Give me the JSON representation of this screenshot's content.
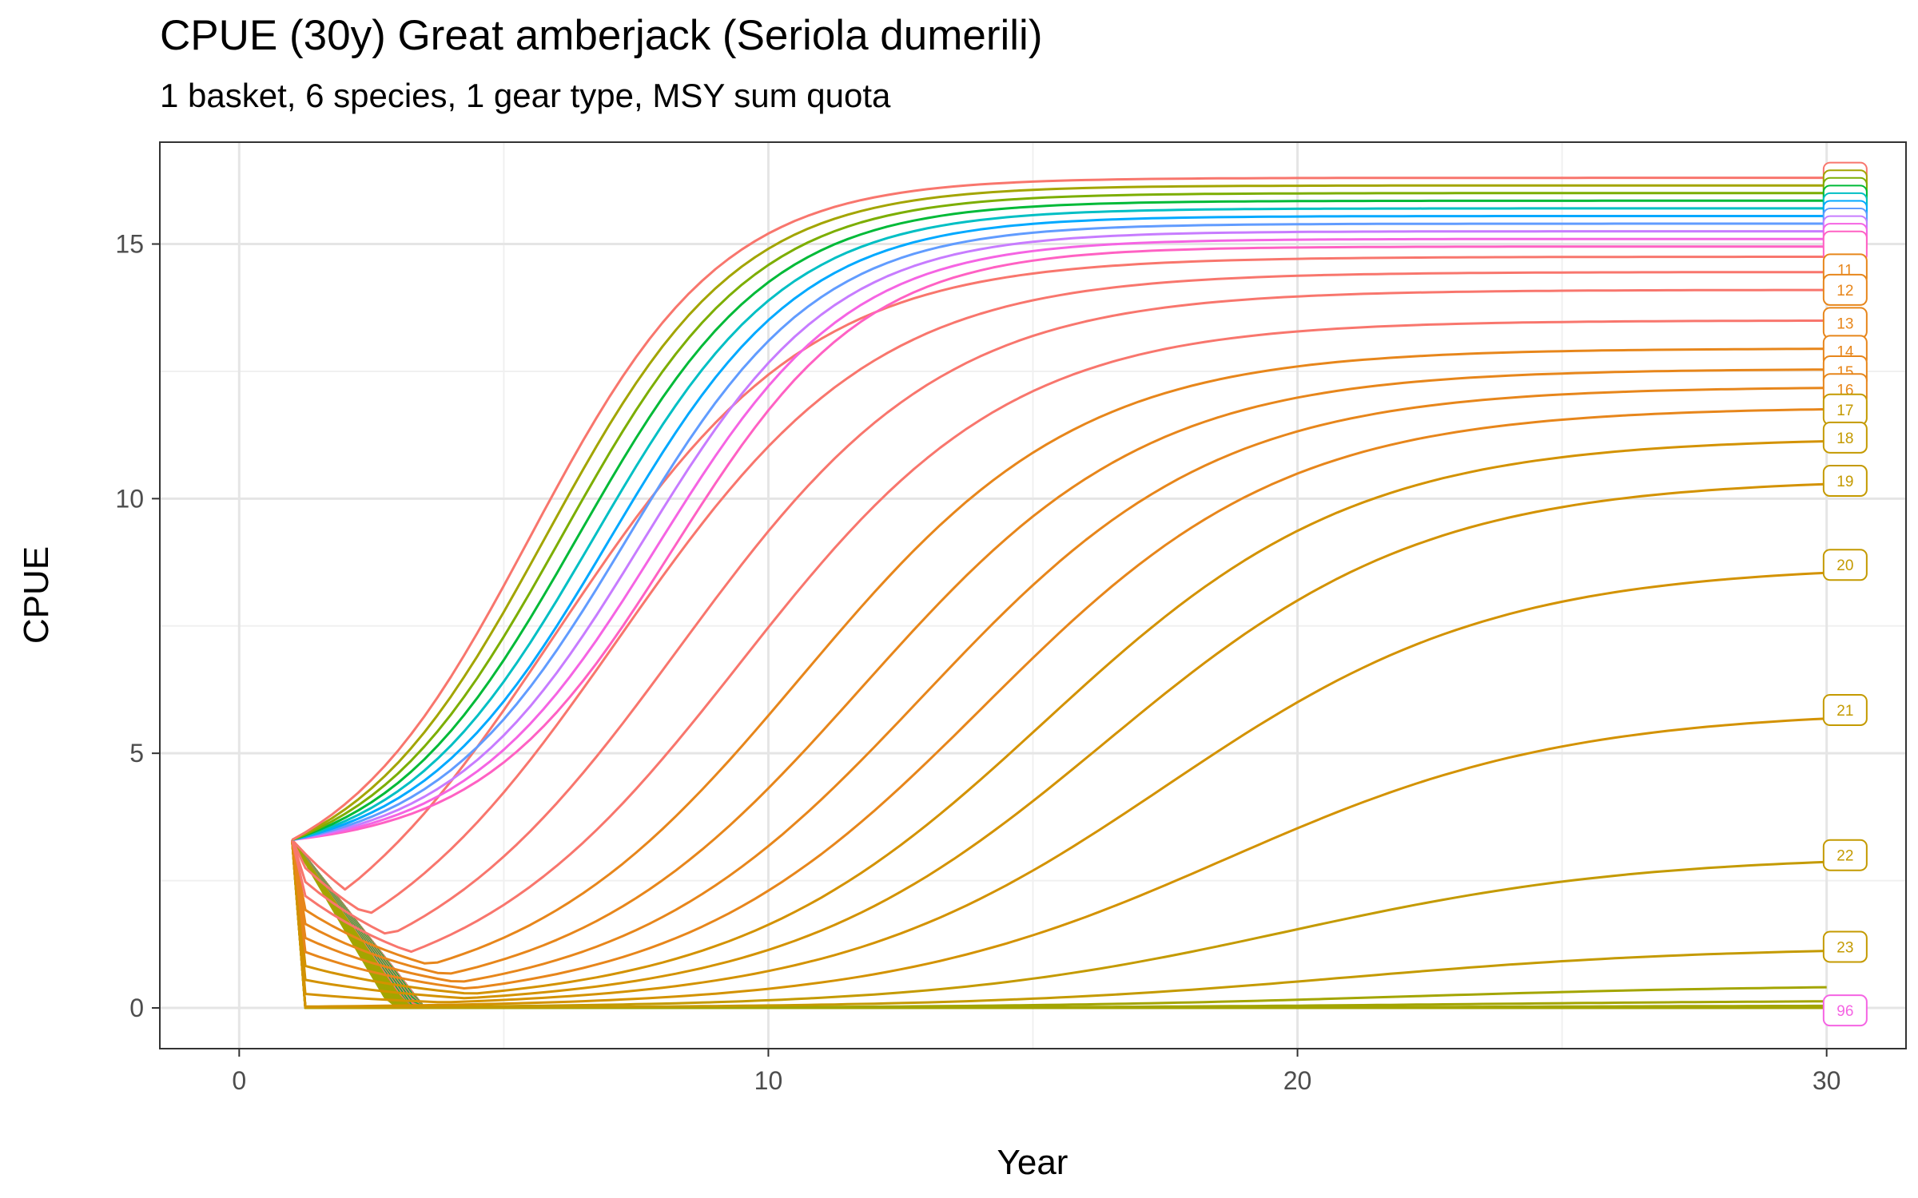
{
  "chart_data": {
    "type": "line",
    "title": "CPUE (30y) Great amberjack (Seriola dumerili)",
    "subtitle": "1 basket, 6 species, 1 gear type, MSY sum quota",
    "xlabel": "Year",
    "ylabel": "CPUE",
    "xlim": [
      -1.5,
      31.5
    ],
    "ylim": [
      -0.8,
      17.0
    ],
    "x_ticks": [
      0,
      10,
      20,
      30
    ],
    "y_ticks": [
      0,
      5,
      10,
      15
    ],
    "grid": true,
    "legend": "none (end-of-line labels)",
    "start": {
      "x": 1,
      "y": 3.3
    },
    "x_end": 30,
    "series_count": 96,
    "end_values": [
      16.3,
      16.15,
      16.0,
      15.85,
      15.7,
      15.55,
      15.4,
      15.25,
      15.1,
      14.95,
      14.75,
      14.45,
      14.1,
      13.5,
      12.95,
      12.55,
      12.2,
      11.8,
      11.2,
      10.4,
      8.7,
      5.85,
      3.0,
      1.2,
      0.45,
      0.15,
      0.05,
      0.02,
      0.01
    ],
    "end_labels": [
      {
        "text": "11",
        "y": 14.5
      },
      {
        "text": "12",
        "y": 14.1
      },
      {
        "text": "13",
        "y": 13.45
      },
      {
        "text": "14",
        "y": 12.9
      },
      {
        "text": "15",
        "y": 12.5
      },
      {
        "text": "16",
        "y": 12.15
      },
      {
        "text": "17",
        "y": 11.75
      },
      {
        "text": "18",
        "y": 11.2
      },
      {
        "text": "19",
        "y": 10.35
      },
      {
        "text": "20",
        "y": 8.7
      },
      {
        "text": "21",
        "y": 5.85
      },
      {
        "text": "22",
        "y": 3.0
      },
      {
        "text": "23",
        "y": 1.2
      },
      {
        "text": "96",
        "y": -0.05
      }
    ],
    "palette": [
      "#F8766D",
      "#E7861B",
      "#D39200",
      "#C49A00",
      "#A3A500",
      "#7CAE00",
      "#00B81F",
      "#00BA38",
      "#00BFC4",
      "#00A9FF",
      "#619CFF",
      "#C77CFF",
      "#F564E3",
      "#FF61C3"
    ]
  }
}
